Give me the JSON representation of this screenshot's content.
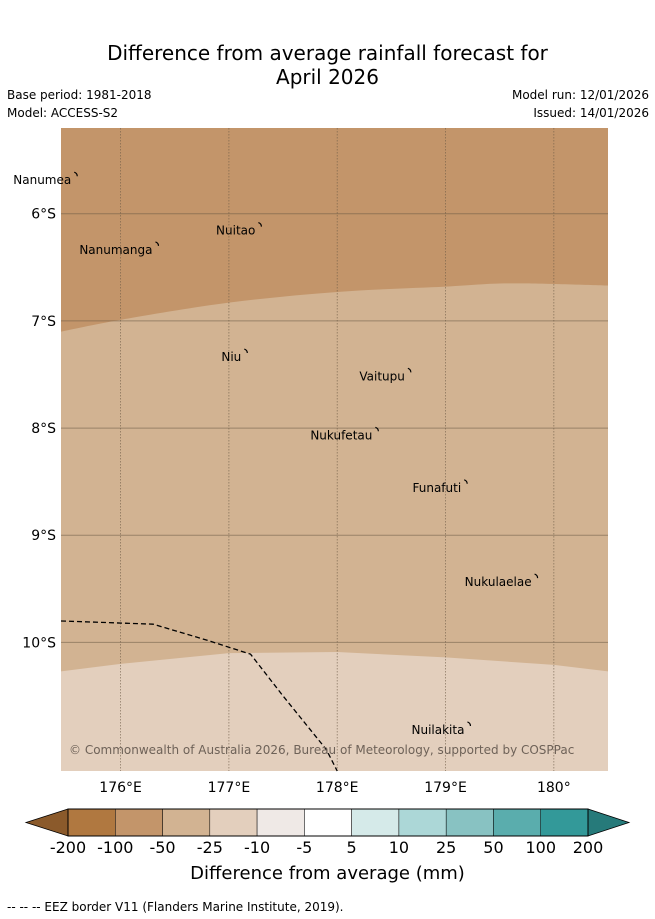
{
  "title": {
    "line1": "Difference from average rainfall forecast for",
    "line2": "April 2026"
  },
  "meta": {
    "base_period": "Base period: 1981-2018",
    "model": "Model: ACCESS-S2",
    "model_run": "Model run: 12/01/2026",
    "issued": "Issued: 14/01/2026"
  },
  "map": {
    "lon_range": [
      175.45,
      180.5
    ],
    "lat_range": [
      -11.2,
      -5.2
    ],
    "lon_ticks": [
      {
        "value": 176,
        "label": "176°E"
      },
      {
        "value": 177,
        "label": "177°E"
      },
      {
        "value": 178,
        "label": "178°E"
      },
      {
        "value": 179,
        "label": "179°E"
      },
      {
        "value": 180,
        "label": "180°"
      }
    ],
    "lat_ticks": [
      {
        "value": -6,
        "label": "6°S"
      },
      {
        "value": -7,
        "label": "7°S"
      },
      {
        "value": -8,
        "label": "8°S"
      },
      {
        "value": -9,
        "label": "9°S"
      },
      {
        "value": -10,
        "label": "10°S"
      }
    ],
    "places": [
      {
        "name": "Nanumea",
        "lon": 175.6,
        "lat": -5.65
      },
      {
        "name": "Nuitao",
        "lon": 177.3,
        "lat": -6.12
      },
      {
        "name": "Nanumanga",
        "lon": 176.35,
        "lat": -6.3
      },
      {
        "name": "Niu",
        "lon": 177.17,
        "lat": -7.3
      },
      {
        "name": "Vaitupu",
        "lon": 178.68,
        "lat": -7.48
      },
      {
        "name": "Nukufetau",
        "lon": 178.38,
        "lat": -8.03
      },
      {
        "name": "Funafuti",
        "lon": 179.2,
        "lat": -8.52
      },
      {
        "name": "Nukulaelae",
        "lon": 179.85,
        "lat": -9.4
      },
      {
        "name": "Nuilakita",
        "lon": 179.23,
        "lat": -10.78
      }
    ],
    "copyright": "© Commonwealth of Australia 2026, Bureau of Meteorology, supported by COSPPac"
  },
  "chart_data": {
    "type": "heatmap",
    "title": "Difference from average rainfall forecast for April 2026",
    "xlabel": "Longitude",
    "ylabel": "Latitude",
    "xlim": [
      175.45,
      180.5
    ],
    "ylim": [
      -11.2,
      -5.2
    ],
    "regions": [
      {
        "category": "-50 to -25 mm",
        "northern_lat": -5.2,
        "southern_boundary": [
          [
            175.45,
            -7.1
          ],
          [
            176,
            -6.99
          ],
          [
            177,
            -6.83
          ],
          [
            178,
            -6.73
          ],
          [
            179,
            -6.68
          ],
          [
            179.6,
            -6.65
          ],
          [
            180.5,
            -6.67
          ]
        ]
      },
      {
        "category": "-25 to -10 mm",
        "southern_boundary": [
          [
            175.45,
            -10.27
          ],
          [
            176,
            -10.2
          ],
          [
            177,
            -10.1
          ],
          [
            178,
            -10.09
          ],
          [
            179,
            -10.14
          ],
          [
            180,
            -10.21
          ],
          [
            180.5,
            -10.27
          ]
        ]
      },
      {
        "category": "-10 to -5 mm",
        "southern_lat": -11.2
      }
    ],
    "eez_border": [
      [
        175.45,
        -9.8
      ],
      [
        176.3,
        -9.83
      ],
      [
        176.8,
        -9.98
      ],
      [
        177.2,
        -10.11
      ],
      [
        177.5,
        -10.5
      ],
      [
        177.9,
        -11.0
      ],
      [
        178.0,
        -11.2
      ]
    ]
  },
  "colorbar": {
    "title": "Difference from average (mm)",
    "ticks": [
      "-200",
      "-100",
      "-50",
      "-25",
      "-10",
      "-5",
      "5",
      "10",
      "25",
      "50",
      "100",
      "200"
    ],
    "colors": [
      "#8b5a2b",
      "#b07840",
      "#c3956a",
      "#d2b392",
      "#e3cfbd",
      "#efe9e6",
      "#ffffff",
      "#d5eae9",
      "#acd7d7",
      "#88c2c2",
      "#5aadad",
      "#339999",
      "#267a7a"
    ]
  },
  "footnote": "-- -- -- EEZ border V11 (Flanders Marine Institute, 2019)."
}
